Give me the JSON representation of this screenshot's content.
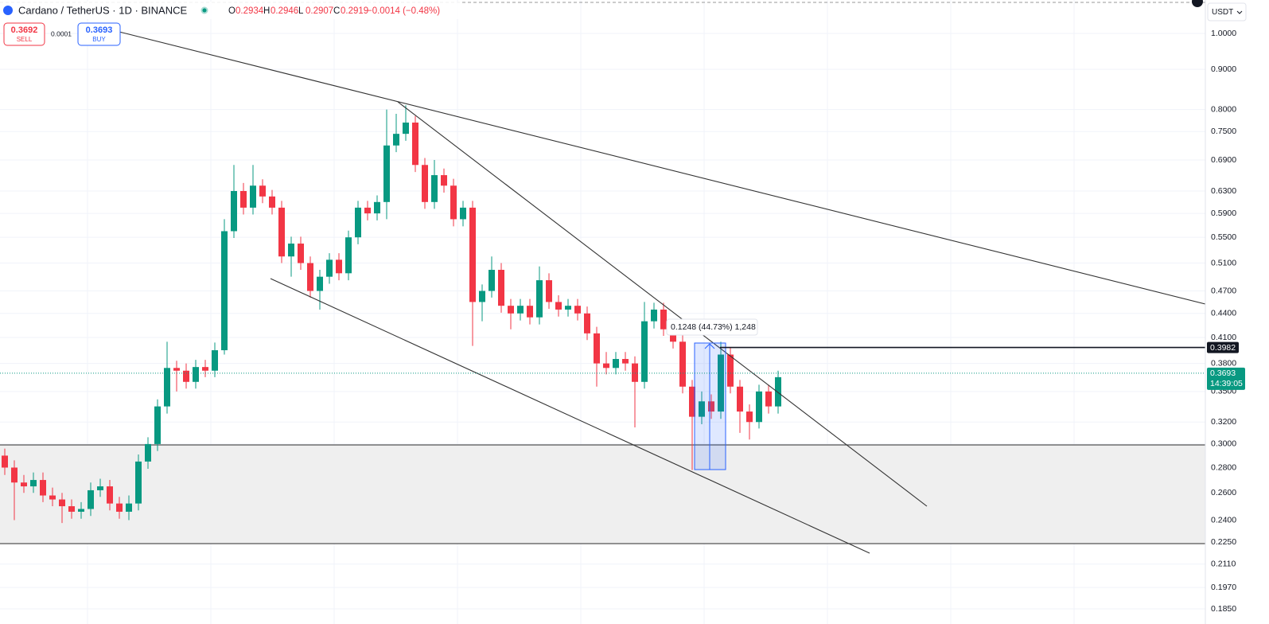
{
  "header": {
    "symbol": "Cardano / TetherUS · 1D · BINANCE",
    "ohlc": [
      {
        "label": "O",
        "value": "0.2934"
      },
      {
        "label": "H",
        "value": "0.2946"
      },
      {
        "label": "L",
        "value": "0.2907"
      },
      {
        "label": "C",
        "value": "0.2919"
      }
    ],
    "change": "−0.0014 (−0.48%)"
  },
  "trade": {
    "sell_price": "0.3692",
    "sell_label": "SELL",
    "spread": "0.0001",
    "buy_price": "0.3693",
    "buy_label": "BUY"
  },
  "currency": "USDT",
  "chart_data": {
    "type": "candlestick",
    "log_scale": true,
    "up_color": "#089981",
    "down_color": "#f23645",
    "ylim": [
      0.177,
      1.103
    ],
    "yticks": [
      {
        "value": 1.0,
        "label": "1.0000"
      },
      {
        "value": 0.9,
        "label": "0.9000"
      },
      {
        "value": 0.8,
        "label": "0.8000"
      },
      {
        "value": 0.75,
        "label": "0.7500"
      },
      {
        "value": 0.69,
        "label": "0.6900"
      },
      {
        "value": 0.63,
        "label": "0.6300"
      },
      {
        "value": 0.59,
        "label": "0.5900"
      },
      {
        "value": 0.55,
        "label": "0.5500"
      },
      {
        "value": 0.51,
        "label": "0.5100"
      },
      {
        "value": 0.47,
        "label": "0.4700"
      },
      {
        "value": 0.44,
        "label": "0.4400"
      },
      {
        "value": 0.41,
        "label": "0.4100"
      },
      {
        "value": 0.38,
        "label": "0.3800"
      },
      {
        "value": 0.35,
        "label": "0.3500"
      },
      {
        "value": 0.32,
        "label": "0.3200"
      },
      {
        "value": 0.3,
        "label": "0.3000"
      },
      {
        "value": 0.28,
        "label": "0.2800"
      },
      {
        "value": 0.26,
        "label": "0.2600"
      },
      {
        "value": 0.24,
        "label": "0.2400"
      },
      {
        "value": 0.225,
        "label": "0.2250"
      },
      {
        "value": 0.211,
        "label": "0.2110"
      },
      {
        "value": 0.197,
        "label": "0.1970"
      },
      {
        "value": 0.185,
        "label": "0.1850"
      }
    ],
    "open": [
      0.29,
      0.28,
      0.268,
      0.265,
      0.27,
      0.258,
      0.255,
      0.25,
      0.246,
      0.248,
      0.262,
      0.265,
      0.252,
      0.246,
      0.252,
      0.285,
      0.3,
      0.335,
      0.375,
      0.372,
      0.36,
      0.376,
      0.372,
      0.395,
      0.56,
      0.63,
      0.6,
      0.64,
      0.62,
      0.6,
      0.52,
      0.54,
      0.51,
      0.47,
      0.49,
      0.515,
      0.495,
      0.55,
      0.6,
      0.59,
      0.61,
      0.72,
      0.745,
      0.77,
      0.68,
      0.61,
      0.66,
      0.64,
      0.58,
      0.6,
      0.455,
      0.47,
      0.5,
      0.45,
      0.44,
      0.45,
      0.435,
      0.485,
      0.455,
      0.445,
      0.45,
      0.44,
      0.415,
      0.38,
      0.375,
      0.385,
      0.38,
      0.36,
      0.43,
      0.445,
      0.42,
      0.405,
      0.355,
      0.325,
      0.34,
      0.33,
      0.39,
      0.355,
      0.33,
      0.32,
      0.35,
      0.335
    ],
    "high": [
      0.296,
      0.286,
      0.274,
      0.276,
      0.276,
      0.264,
      0.26,
      0.255,
      0.253,
      0.268,
      0.271,
      0.27,
      0.257,
      0.258,
      0.291,
      0.306,
      0.342,
      0.405,
      0.383,
      0.38,
      0.384,
      0.384,
      0.404,
      0.58,
      0.68,
      0.645,
      0.68,
      0.652,
      0.632,
      0.612,
      0.551,
      0.551,
      0.52,
      0.5,
      0.525,
      0.525,
      0.561,
      0.612,
      0.612,
      0.622,
      0.8,
      0.79,
      0.81,
      0.785,
      0.694,
      0.69,
      0.673,
      0.653,
      0.612,
      0.612,
      0.479,
      0.52,
      0.51,
      0.459,
      0.459,
      0.459,
      0.505,
      0.495,
      0.464,
      0.459,
      0.459,
      0.449,
      0.423,
      0.393,
      0.393,
      0.393,
      0.388,
      0.455,
      0.454,
      0.454,
      0.428,
      0.413,
      0.362,
      0.35,
      0.347,
      0.405,
      0.398,
      0.362,
      0.337,
      0.357,
      0.357,
      0.372
    ],
    "low": [
      0.274,
      0.24,
      0.26,
      0.26,
      0.253,
      0.25,
      0.238,
      0.241,
      0.241,
      0.243,
      0.257,
      0.247,
      0.241,
      0.24,
      0.247,
      0.279,
      0.294,
      0.328,
      0.35,
      0.353,
      0.353,
      0.365,
      0.365,
      0.39,
      0.549,
      0.588,
      0.588,
      0.608,
      0.588,
      0.51,
      0.49,
      0.5,
      0.461,
      0.445,
      0.48,
      0.485,
      0.485,
      0.539,
      0.578,
      0.578,
      0.58,
      0.706,
      0.73,
      0.666,
      0.598,
      0.598,
      0.627,
      0.568,
      0.568,
      0.4,
      0.43,
      0.461,
      0.441,
      0.42,
      0.431,
      0.426,
      0.426,
      0.446,
      0.436,
      0.436,
      0.431,
      0.407,
      0.355,
      0.368,
      0.368,
      0.372,
      0.315,
      0.353,
      0.421,
      0.412,
      0.397,
      0.348,
      0.278,
      0.318,
      0.323,
      0.323,
      0.348,
      0.31,
      0.304,
      0.314,
      0.328,
      0.328
    ],
    "close": [
      0.28,
      0.268,
      0.265,
      0.27,
      0.258,
      0.255,
      0.25,
      0.246,
      0.248,
      0.262,
      0.265,
      0.252,
      0.246,
      0.252,
      0.285,
      0.3,
      0.335,
      0.375,
      0.372,
      0.36,
      0.376,
      0.372,
      0.395,
      0.56,
      0.63,
      0.6,
      0.64,
      0.62,
      0.6,
      0.52,
      0.54,
      0.51,
      0.47,
      0.49,
      0.515,
      0.495,
      0.55,
      0.6,
      0.59,
      0.61,
      0.72,
      0.745,
      0.77,
      0.68,
      0.61,
      0.66,
      0.64,
      0.58,
      0.6,
      0.455,
      0.47,
      0.5,
      0.45,
      0.44,
      0.45,
      0.435,
      0.485,
      0.455,
      0.445,
      0.45,
      0.44,
      0.415,
      0.38,
      0.375,
      0.385,
      0.38,
      0.36,
      0.43,
      0.445,
      0.42,
      0.405,
      0.355,
      0.325,
      0.34,
      0.33,
      0.39,
      0.355,
      0.33,
      0.32,
      0.35,
      0.335,
      0.365
    ],
    "level": 0.3982,
    "last_price": 0.3693,
    "countdown": "14:39:05",
    "measure_label": "0.1248 (44.73%) 1,248"
  }
}
